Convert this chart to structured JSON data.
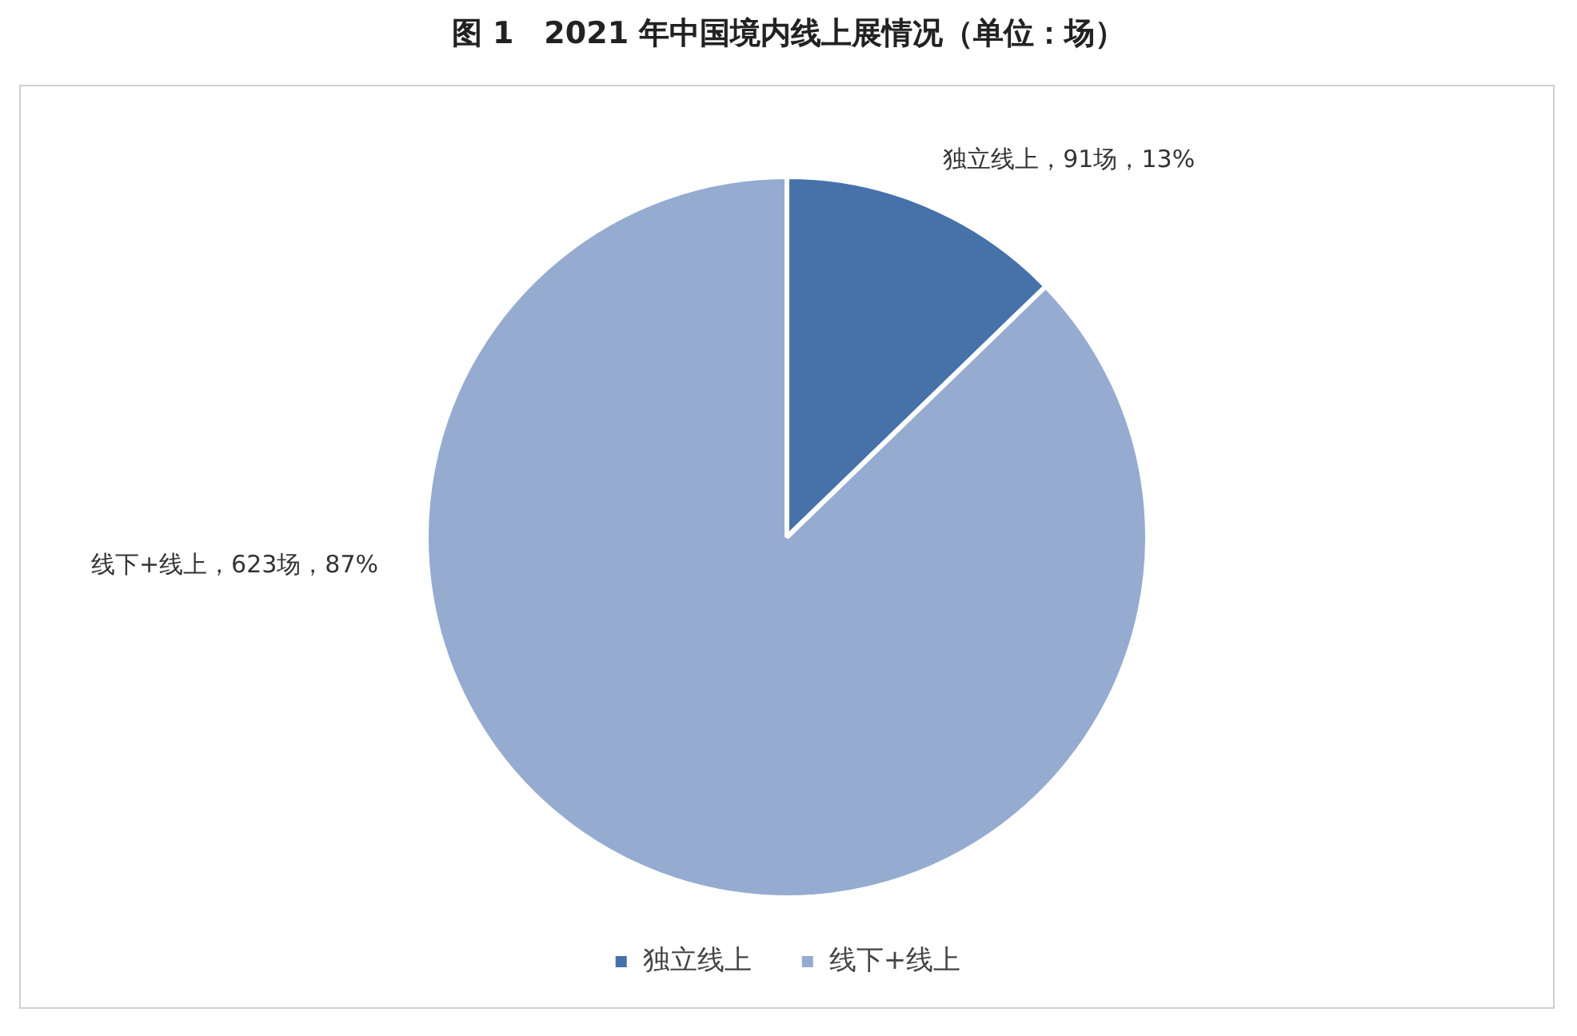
{
  "chart_data": {
    "type": "pie",
    "title": "图 1　2021 年中国境内线上展情况（单位：场）",
    "categories": [
      "独立线上",
      "线下+线上"
    ],
    "values": [
      91,
      623
    ],
    "colors": [
      "#4672a9",
      "#95abd0"
    ],
    "value_labels": [
      "独立线上，91场，13%",
      "线下+线上，623场，87%"
    ],
    "legend": "bottom"
  }
}
